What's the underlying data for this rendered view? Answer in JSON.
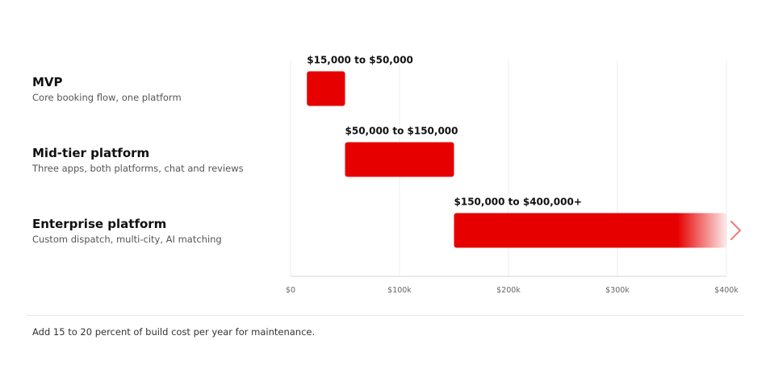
{
  "colors": {
    "bar": "#e60000",
    "grid": "#ececec",
    "axis": "#d9d9d9",
    "arrow": "#f08080"
  },
  "chart_data": {
    "type": "bar",
    "orientation": "horizontal",
    "style": "range",
    "title": "",
    "xlabel": "",
    "ylabel": "",
    "xlim": [
      0,
      400000
    ],
    "x_ticks": [
      0,
      100000,
      200000,
      300000,
      400000
    ],
    "x_tick_labels": [
      "$0",
      "$100k",
      "$200k",
      "$300k",
      "$400k"
    ],
    "grid": "vertical",
    "categories": [
      "MVP",
      "Mid-tier platform",
      "Enterprise platform"
    ],
    "descriptions": [
      "Core booking flow, one platform",
      "Three apps, both platforms, chat and reviews",
      "Custom dispatch, multi-city, AI matching"
    ],
    "ranges": [
      {
        "low": 15000,
        "high": 50000,
        "label": "$15,000 to $50,000",
        "open_ended": false
      },
      {
        "low": 50000,
        "high": 150000,
        "label": "$50,000 to $150,000",
        "open_ended": false
      },
      {
        "low": 150000,
        "high": 400000,
        "label": "$150,000 to $400,000+",
        "open_ended": true
      }
    ]
  },
  "footnote": "Add 15 to 20 percent of build cost per year for maintenance."
}
